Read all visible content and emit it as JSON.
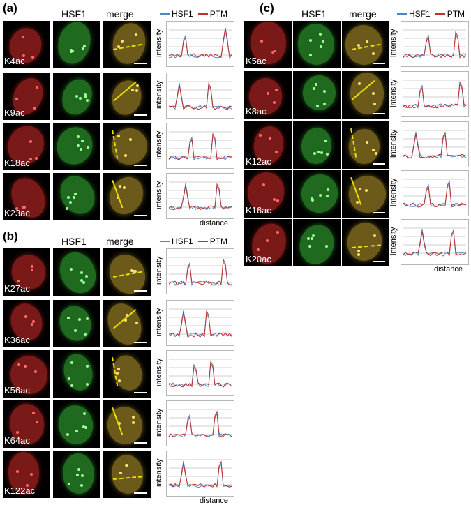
{
  "colors": {
    "hsf1": "#4a86c8",
    "ptm": "#c03030",
    "line": "#e8e000"
  },
  "panels": {
    "a": {
      "label": "(a)",
      "hdr_hsf1": "HSF1",
      "hdr_merge": "merge",
      "legend_hsf1": "HSF1",
      "legend_ptm": "PTM",
      "rows": [
        "K4ac",
        "K9ac",
        "K18ac",
        "K23ac"
      ],
      "xlabel": "distance"
    },
    "b": {
      "label": "(b)",
      "hdr_hsf1": "HSF1",
      "hdr_merge": "merge",
      "legend_hsf1": "HSF1",
      "legend_ptm": "PTM",
      "rows": [
        "K27ac",
        "K36ac",
        "K56ac",
        "K64ac",
        "K122ac"
      ],
      "xlabel": "distance"
    },
    "c": {
      "label": "(c)",
      "hdr_hsf1": "HSF1",
      "hdr_merge": "merge",
      "legend_hsf1": "HSF1",
      "legend_ptm": "PTM",
      "rows": [
        "K5ac",
        "K8ac",
        "K12ac",
        "K16ac",
        "K20ac"
      ],
      "xlabel": "distance"
    }
  },
  "ylabel": "intensity"
}
